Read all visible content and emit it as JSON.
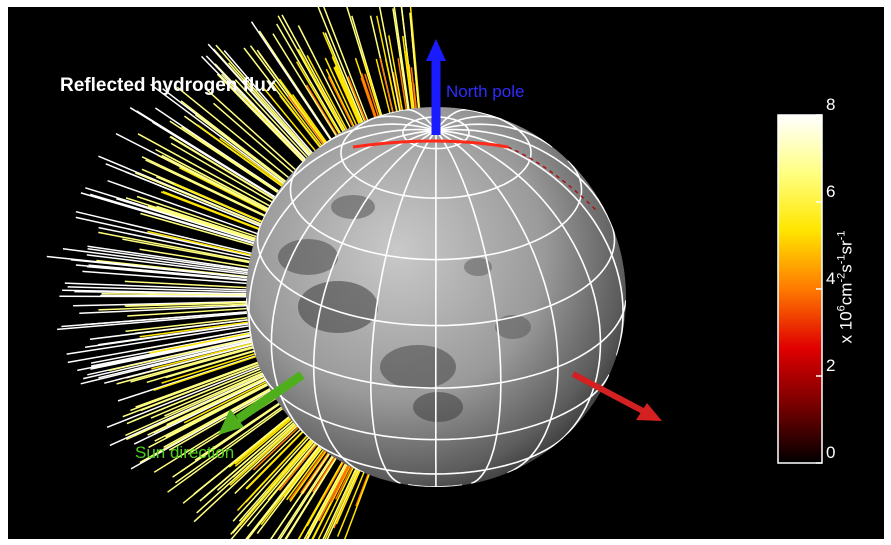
{
  "figure": {
    "title": "Reflected hydrogen flux",
    "north_label": "North pole",
    "sun_label": "Sun direction"
  },
  "colorbar": {
    "ticks": [
      "0",
      "2",
      "4",
      "6",
      "8"
    ],
    "min": 0,
    "max": 8,
    "unit_prefix": "x 10",
    "unit_exp1": "6",
    "unit_cm": "cm",
    "unit_exp2": "-2",
    "unit_s": "s",
    "unit_exp3": "-1",
    "unit_sr": "sr",
    "unit_exp4": "-1",
    "colors": [
      "#000000",
      "#7a0000",
      "#e00000",
      "#ff7a00",
      "#ffe600",
      "#ffff80",
      "#ffffff"
    ]
  },
  "arrows": {
    "north_color": "#1b1bff",
    "sun_color": "#4fae1c",
    "third_color": "#d42020"
  }
}
